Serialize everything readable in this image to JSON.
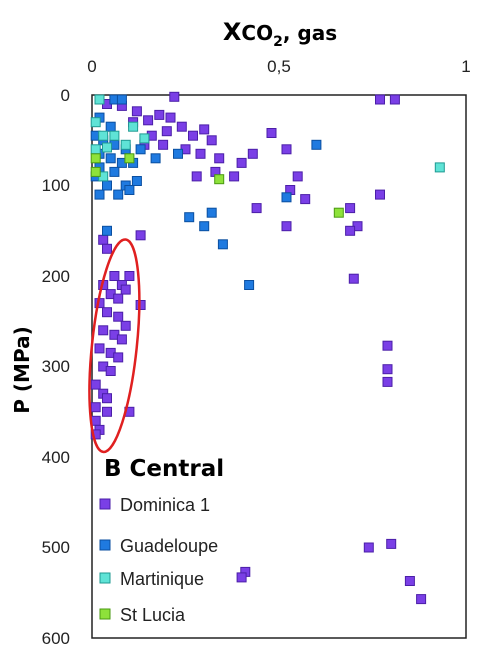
{
  "chart_data": {
    "type": "scatter",
    "title": "B Central",
    "x_axis": {
      "label_main": "X",
      "label_sub1": "CO",
      "label_sub2": "2",
      "label_tail": ", gas",
      "position": "top",
      "range": [
        0,
        1
      ],
      "ticks": [
        "0",
        "0,5",
        "1"
      ]
    },
    "y_axis": {
      "label": "P (MPa)",
      "reversed": true,
      "range": [
        0,
        600
      ],
      "ticks": [
        "0",
        "100",
        "200",
        "300",
        "400",
        "500",
        "600"
      ]
    },
    "grid": false,
    "legend": {
      "placement": "bottom-left"
    },
    "series": [
      {
        "name": "Dominica 1",
        "color": "#7a3fe6",
        "edge": "#4b1fa8",
        "points": [
          [
            0.22,
            2
          ],
          [
            0.77,
            5
          ],
          [
            0.81,
            5
          ],
          [
            0.04,
            10
          ],
          [
            0.08,
            12
          ],
          [
            0.12,
            18
          ],
          [
            0.11,
            30
          ],
          [
            0.15,
            28
          ],
          [
            0.18,
            22
          ],
          [
            0.21,
            25
          ],
          [
            0.24,
            35
          ],
          [
            0.2,
            40
          ],
          [
            0.27,
            45
          ],
          [
            0.3,
            38
          ],
          [
            0.32,
            50
          ],
          [
            0.16,
            45
          ],
          [
            0.14,
            55
          ],
          [
            0.19,
            55
          ],
          [
            0.25,
            60
          ],
          [
            0.29,
            65
          ],
          [
            0.34,
            70
          ],
          [
            0.48,
            42
          ],
          [
            0.4,
            75
          ],
          [
            0.43,
            65
          ],
          [
            0.33,
            85
          ],
          [
            0.28,
            90
          ],
          [
            0.38,
            90
          ],
          [
            0.52,
            60
          ],
          [
            0.55,
            90
          ],
          [
            0.53,
            105
          ],
          [
            0.57,
            115
          ],
          [
            0.77,
            110
          ],
          [
            0.69,
            125
          ],
          [
            0.44,
            125
          ],
          [
            0.52,
            145
          ],
          [
            0.71,
            145
          ],
          [
            0.69,
            150
          ],
          [
            0.13,
            155
          ],
          [
            0.03,
            160
          ],
          [
            0.04,
            170
          ],
          [
            0.1,
            200
          ],
          [
            0.06,
            200
          ],
          [
            0.03,
            210
          ],
          [
            0.08,
            210
          ],
          [
            0.09,
            215
          ],
          [
            0.05,
            220
          ],
          [
            0.07,
            225
          ],
          [
            0.02,
            230
          ],
          [
            0.13,
            232
          ],
          [
            0.04,
            240
          ],
          [
            0.07,
            245
          ],
          [
            0.09,
            255
          ],
          [
            0.03,
            260
          ],
          [
            0.06,
            265
          ],
          [
            0.08,
            270
          ],
          [
            0.02,
            280
          ],
          [
            0.05,
            285
          ],
          [
            0.07,
            290
          ],
          [
            0.03,
            300
          ],
          [
            0.05,
            305
          ],
          [
            0.01,
            320
          ],
          [
            0.03,
            330
          ],
          [
            0.04,
            335
          ],
          [
            0.01,
            345
          ],
          [
            0.04,
            350
          ],
          [
            0.1,
            350
          ],
          [
            0.01,
            360
          ],
          [
            0.02,
            370
          ],
          [
            0.01,
            375
          ],
          [
            0.7,
            203
          ],
          [
            0.79,
            277
          ],
          [
            0.79,
            303
          ],
          [
            0.79,
            317
          ],
          [
            0.74,
            500
          ],
          [
            0.8,
            496
          ],
          [
            0.41,
            527
          ],
          [
            0.4,
            533
          ],
          [
            0.85,
            537
          ],
          [
            0.88,
            557
          ]
        ]
      },
      {
        "name": "Guadeloupe",
        "color": "#1f7ae0",
        "edge": "#0b4fa0",
        "points": [
          [
            0.06,
            5
          ],
          [
            0.08,
            5
          ],
          [
            0.02,
            25
          ],
          [
            0.05,
            35
          ],
          [
            0.01,
            45
          ],
          [
            0.03,
            50
          ],
          [
            0.06,
            55
          ],
          [
            0.09,
            60
          ],
          [
            0.02,
            65
          ],
          [
            0.05,
            70
          ],
          [
            0.08,
            75
          ],
          [
            0.11,
            75
          ],
          [
            0.17,
            70
          ],
          [
            0.13,
            60
          ],
          [
            0.02,
            80
          ],
          [
            0.06,
            85
          ],
          [
            0.01,
            90
          ],
          [
            0.04,
            100
          ],
          [
            0.09,
            100
          ],
          [
            0.12,
            95
          ],
          [
            0.02,
            110
          ],
          [
            0.07,
            110
          ],
          [
            0.1,
            105
          ],
          [
            0.23,
            65
          ],
          [
            0.26,
            135
          ],
          [
            0.32,
            130
          ],
          [
            0.3,
            145
          ],
          [
            0.35,
            165
          ],
          [
            0.04,
            150
          ],
          [
            0.6,
            55
          ],
          [
            0.52,
            113
          ],
          [
            0.42,
            210
          ]
        ]
      },
      {
        "name": "Martinique",
        "color": "#5fe3d6",
        "edge": "#1f9a92",
        "points": [
          [
            0.02,
            5
          ],
          [
            0.01,
            30
          ],
          [
            0.03,
            45
          ],
          [
            0.06,
            45
          ],
          [
            0.01,
            60
          ],
          [
            0.04,
            58
          ],
          [
            0.09,
            55
          ],
          [
            0.11,
            35
          ],
          [
            0.14,
            48
          ],
          [
            0.03,
            90
          ],
          [
            0.93,
            80
          ]
        ]
      },
      {
        "name": "St Lucia",
        "color": "#8ee23a",
        "edge": "#4a9a12",
        "points": [
          [
            0.01,
            70
          ],
          [
            0.01,
            85
          ],
          [
            0.1,
            70
          ],
          [
            0.34,
            93
          ],
          [
            0.66,
            130
          ]
        ]
      }
    ],
    "annotations": [
      {
        "type": "ellipse",
        "color": "#e02020",
        "cx": 0.06,
        "cy": 277,
        "rx": 0.06,
        "ry": 118
      }
    ]
  }
}
